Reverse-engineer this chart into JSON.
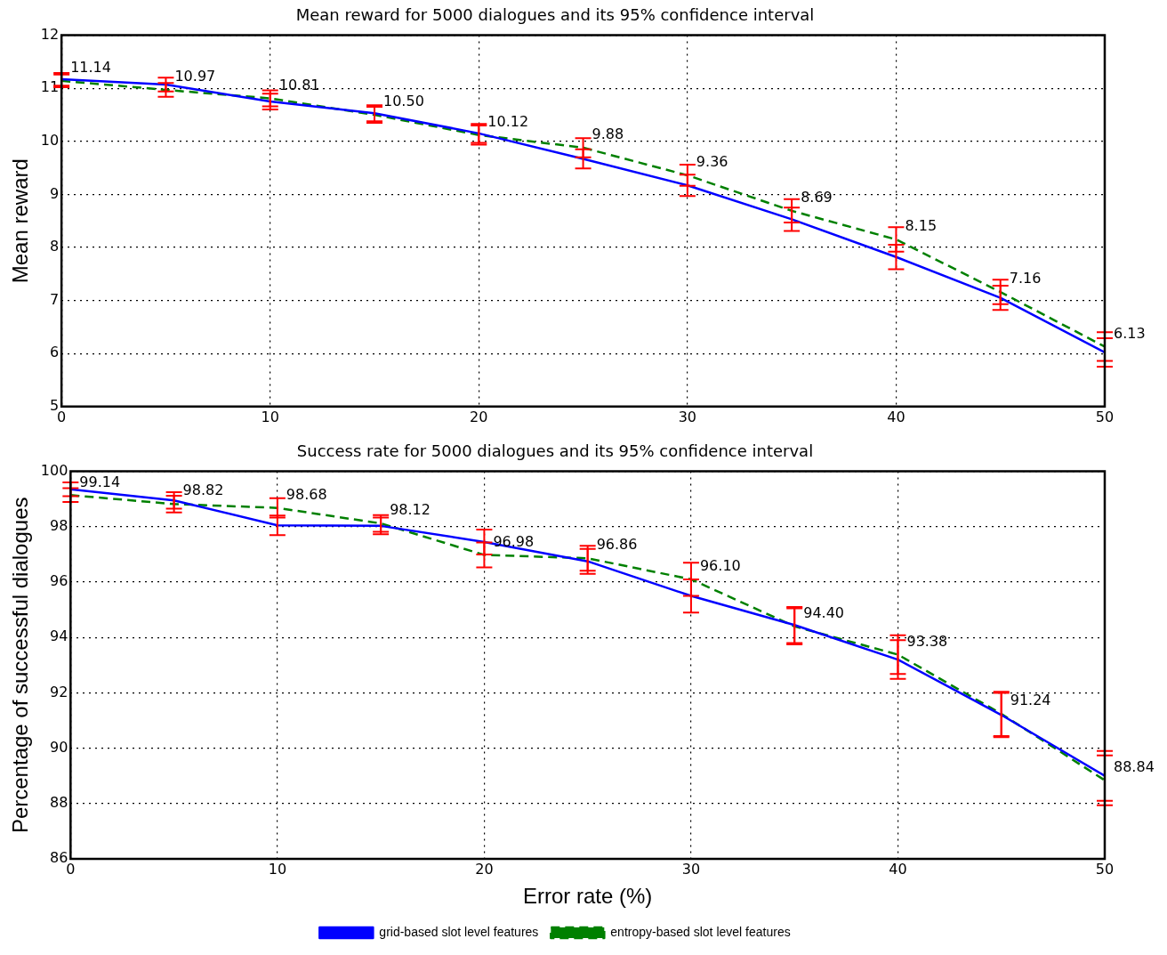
{
  "chart_data": [
    {
      "type": "line",
      "title": "Mean reward for 5000 dialogues and its 95% confidence interval",
      "ylabel": "Mean reward",
      "x": [
        0,
        5,
        10,
        15,
        20,
        25,
        30,
        35,
        40,
        45,
        50
      ],
      "xlim": [
        0,
        50
      ],
      "xticks": [
        0,
        10,
        20,
        30,
        40,
        50
      ],
      "ylim": [
        5,
        12
      ],
      "yticks": [
        5,
        6,
        7,
        8,
        9,
        10,
        11,
        12
      ],
      "grid": true,
      "legend": false,
      "marker": "none",
      "series": [
        {
          "color": "#0000ff",
          "line_style": "solid",
          "values": [
            11.17,
            11.07,
            10.75,
            10.53,
            10.15,
            9.67,
            9.17,
            8.53,
            7.82,
            7.05,
            6.02
          ],
          "errors": [
            0.12,
            0.13,
            0.15,
            0.15,
            0.18,
            0.18,
            0.2,
            0.22,
            0.23,
            0.23,
            0.27
          ]
        },
        {
          "color": "#008000",
          "line_style": "dashed",
          "values": [
            11.14,
            10.97,
            10.81,
            10.5,
            10.12,
            9.88,
            9.36,
            8.69,
            8.15,
            7.16,
            6.13
          ],
          "errors": [
            0.12,
            0.13,
            0.15,
            0.15,
            0.18,
            0.18,
            0.2,
            0.22,
            0.23,
            0.23,
            0.27
          ],
          "value_labels": [
            "11.14",
            "10.97",
            "10.81",
            "10.50",
            "10.12",
            "9.88",
            "9.36",
            "8.69",
            "8.15",
            "7.16",
            "6.13"
          ]
        }
      ]
    },
    {
      "type": "line",
      "title": "Success rate for 5000 dialogues and its 95% confidence interval",
      "xlabel": "Error rate (%)",
      "ylabel": "Percentage of successful dialogues",
      "x": [
        0,
        5,
        10,
        15,
        20,
        25,
        30,
        35,
        40,
        45,
        50
      ],
      "xlim": [
        0,
        50
      ],
      "xticks": [
        0,
        10,
        20,
        30,
        40,
        50
      ],
      "ylim": [
        86,
        100
      ],
      "yticks": [
        86,
        88,
        90,
        92,
        94,
        96,
        98,
        100
      ],
      "grid": true,
      "legend": "bottom",
      "marker": "none",
      "series": [
        {
          "name": "grid-based slot level features",
          "color": "#0000ff",
          "line_style": "solid",
          "values": [
            99.35,
            98.95,
            98.05,
            98.03,
            97.45,
            96.75,
            95.5,
            94.45,
            93.2,
            91.2,
            89.0
          ],
          "errors": [
            0.25,
            0.3,
            0.35,
            0.3,
            0.45,
            0.45,
            0.6,
            0.65,
            0.7,
            0.8,
            0.9
          ]
        },
        {
          "name": "entropy-based slot level features",
          "color": "#008000",
          "line_style": "dashed",
          "values": [
            99.14,
            98.82,
            98.68,
            98.12,
            96.98,
            96.86,
            96.1,
            94.4,
            93.38,
            91.24,
            88.84
          ],
          "errors": [
            0.25,
            0.3,
            0.35,
            0.3,
            0.45,
            0.45,
            0.6,
            0.65,
            0.7,
            0.8,
            0.9
          ],
          "value_labels": [
            "99.14",
            "98.82",
            "98.68",
            "98.12",
            "96.98",
            "96.86",
            "96.10",
            "94.40",
            "93.38",
            "91.24",
            "88.84"
          ]
        }
      ]
    }
  ]
}
